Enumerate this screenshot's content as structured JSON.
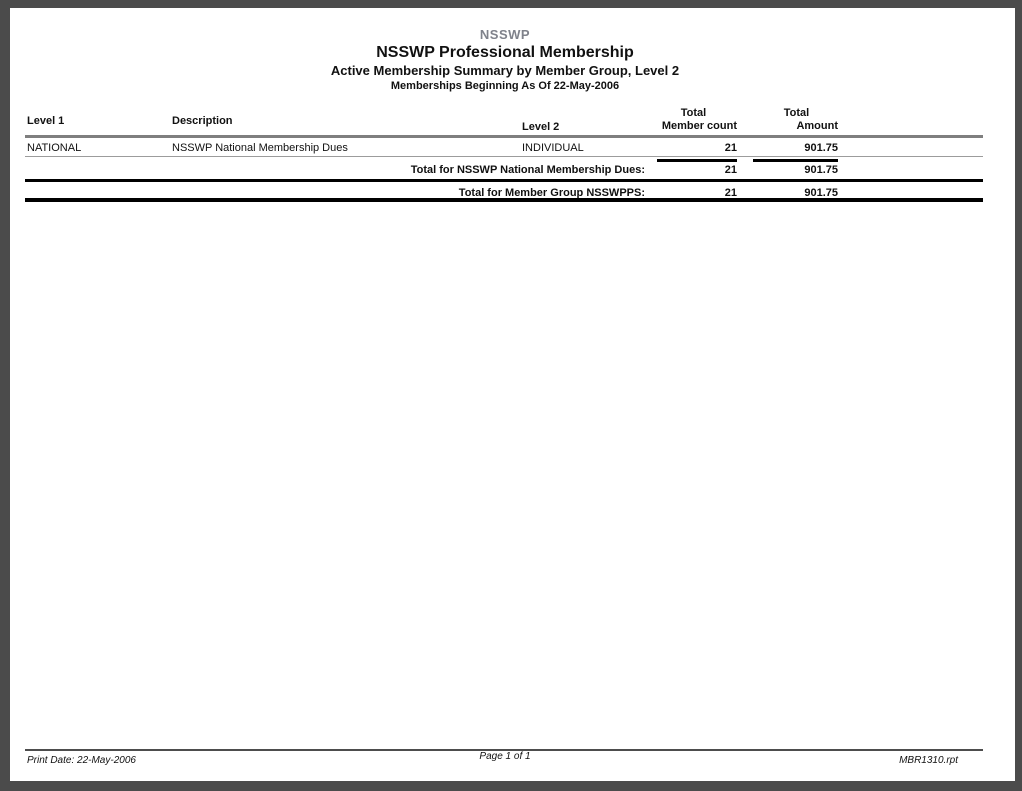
{
  "report": {
    "org": "NSSWP",
    "title": "NSSWP Professional Membership",
    "subtitle": "Active Membership Summary by Member Group, Level 2",
    "date_line": "Memberships Beginning As Of 22-May-2006"
  },
  "table": {
    "columns": {
      "level1": "Level 1",
      "description": "Description",
      "level2": "Level 2",
      "member_count_top": "Total",
      "member_count": "Member count",
      "amount_top": "Total",
      "amount": "Amount"
    },
    "rows": [
      {
        "level1": "NATIONAL",
        "description": "NSSWP National Membership Dues",
        "level2": "INDIVIDUAL",
        "member_count": "21",
        "amount": "901.75"
      }
    ],
    "group_total": {
      "label": "Total for NSSWP National Membership Dues:",
      "member_count": "21",
      "amount": "901.75"
    },
    "grand_total": {
      "label": "Total for Member Group NSSWPPS:",
      "member_count": "21",
      "amount": "901.75"
    }
  },
  "footer": {
    "print_date": "Print Date: 22-May-2006",
    "page": "Page 1 of 1",
    "report_file": "MBR1310.rpt"
  },
  "colors": {
    "org_label": "#7f828b",
    "header_rule": "#7f7f7f",
    "row_rule": "#9c9c9c",
    "total_rule": "#000000",
    "frame": "#4b4b4b",
    "page_background": "#ffffff"
  }
}
